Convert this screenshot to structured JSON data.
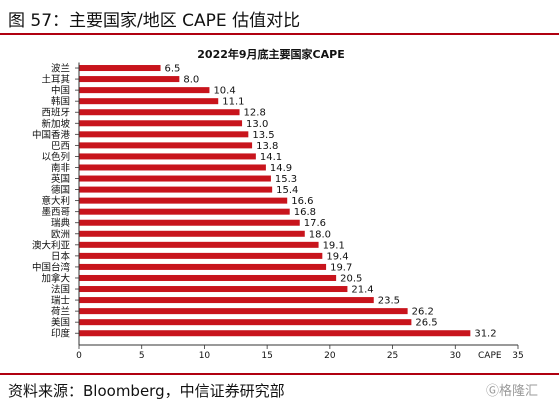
{
  "figure_title": "图 57：主要国家/地区 CAPE 估值对比",
  "source": "资料来源：Bloomberg，中信证券研究部",
  "watermark": "格隆汇",
  "colors": {
    "bar": "#c8141c",
    "rule": "#b00010"
  },
  "chart_data": {
    "type": "bar",
    "orientation": "horizontal",
    "title": "2022年9月底主要国家CAPE",
    "xlabel": "CAPE",
    "ylabel": "",
    "xlim": [
      0,
      35
    ],
    "xticks": [
      0,
      5,
      10,
      15,
      20,
      25,
      30,
      35
    ],
    "grid": false,
    "categories": [
      "波兰",
      "土耳其",
      "中国",
      "韩国",
      "西班牙",
      "新加坡",
      "中国香港",
      "巴西",
      "以色列",
      "南非",
      "英国",
      "德国",
      "意大利",
      "墨西哥",
      "瑞典",
      "欧洲",
      "澳大利亚",
      "日本",
      "中国台湾",
      "加拿大",
      "法国",
      "瑞士",
      "荷兰",
      "美国",
      "印度"
    ],
    "values": [
      6.5,
      8.0,
      10.4,
      11.1,
      12.8,
      13.0,
      13.5,
      13.8,
      14.1,
      14.9,
      15.3,
      15.4,
      16.6,
      16.8,
      17.6,
      18.0,
      19.1,
      19.4,
      19.7,
      20.5,
      21.4,
      23.5,
      26.2,
      26.5,
      31.2
    ],
    "value_labels": [
      "6.5",
      "8.0",
      "10.4",
      "11.1",
      "12.8",
      "13.0",
      "13.5",
      "13.8",
      "14.1",
      "14.9",
      "15.3",
      "15.4",
      "16.6",
      "16.8",
      "17.6",
      "18.0",
      "19.1",
      "19.4",
      "19.7",
      "20.5",
      "21.4",
      "23.5",
      "26.2",
      "26.5",
      "31.2"
    ]
  }
}
